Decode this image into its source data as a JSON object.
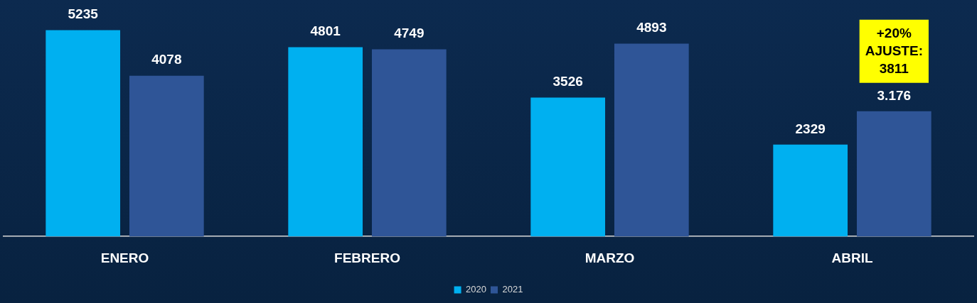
{
  "chart_data": {
    "type": "bar",
    "categories": [
      "ENERO",
      "FEBRERO",
      "MARZO",
      "ABRIL"
    ],
    "series": [
      {
        "name": "2020",
        "color": "#00b0f0",
        "values": [
          5235,
          4801,
          3526,
          2329
        ],
        "value_labels": [
          "5235",
          "4801",
          "3526",
          "2329"
        ]
      },
      {
        "name": "2021",
        "color": "#2f5597",
        "values": [
          4078,
          4749,
          4893,
          3176
        ],
        "value_labels": [
          "4078",
          "4749",
          "4893",
          "3.176"
        ]
      }
    ],
    "annotations": [
      "+20%\nAJUSTE:\n3811"
    ],
    "legend": "bottom",
    "grid": false
  }
}
